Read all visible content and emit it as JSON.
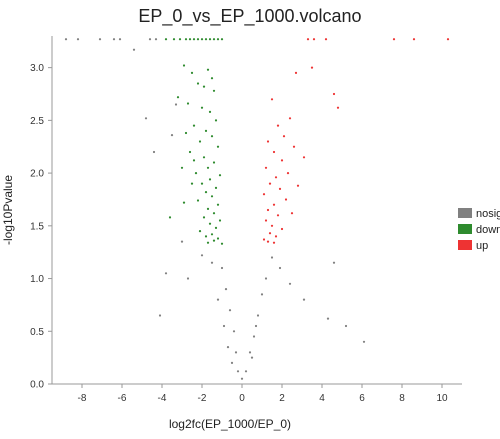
{
  "chart_data": {
    "type": "scatter",
    "title": "EP_0_vs_EP_1000.volcano",
    "xlabel": "log2fc(EP_1000/EP_0)",
    "ylabel": "-log10Pvalue",
    "xlim": [
      -9.5,
      11
    ],
    "ylim": [
      0,
      3.3
    ],
    "x_ticks": [
      -8,
      -6,
      -4,
      -2,
      0,
      2,
      4,
      6,
      8,
      10
    ],
    "y_ticks": [
      0.0,
      0.5,
      1.0,
      1.5,
      2.0,
      2.5,
      3.0
    ],
    "grid": false,
    "legend_position": "right",
    "legend": [
      {
        "key": "nosig",
        "label": "nosig",
        "color": "#808080"
      },
      {
        "key": "down",
        "label": "down",
        "color": "#2e8b2e"
      },
      {
        "key": "up",
        "label": "up",
        "color": "#ee3333"
      }
    ],
    "series": [
      {
        "name": "down",
        "color": "#2e8b2e",
        "points": [
          [
            -3.8,
            3.27
          ],
          [
            -3.4,
            3.27
          ],
          [
            -3.1,
            3.27
          ],
          [
            -2.8,
            3.27
          ],
          [
            -2.6,
            3.27
          ],
          [
            -2.4,
            3.27
          ],
          [
            -2.2,
            3.27
          ],
          [
            -2.0,
            3.27
          ],
          [
            -1.8,
            3.27
          ],
          [
            -1.6,
            3.27
          ],
          [
            -1.4,
            3.27
          ],
          [
            -1.2,
            3.27
          ],
          [
            -1.0,
            3.27
          ],
          [
            -2.9,
            3.02
          ],
          [
            -2.5,
            2.95
          ],
          [
            -1.7,
            2.98
          ],
          [
            -1.5,
            2.9
          ],
          [
            -2.2,
            2.85
          ],
          [
            -1.9,
            2.82
          ],
          [
            -1.4,
            2.78
          ],
          [
            -3.2,
            2.72
          ],
          [
            -2.7,
            2.66
          ],
          [
            -2.0,
            2.62
          ],
          [
            -1.6,
            2.58
          ],
          [
            -1.3,
            2.5
          ],
          [
            -2.4,
            2.45
          ],
          [
            -1.8,
            2.4
          ],
          [
            -1.5,
            2.35
          ],
          [
            -2.1,
            2.3
          ],
          [
            -1.2,
            2.25
          ],
          [
            -2.6,
            2.2
          ],
          [
            -1.9,
            2.15
          ],
          [
            -1.4,
            2.1
          ],
          [
            -1.7,
            2.05
          ],
          [
            -2.3,
            2.0
          ],
          [
            -1.1,
            1.98
          ],
          [
            -1.6,
            1.94
          ],
          [
            -2.0,
            1.9
          ],
          [
            -1.3,
            1.86
          ],
          [
            -1.8,
            1.82
          ],
          [
            -1.5,
            1.78
          ],
          [
            -2.2,
            1.74
          ],
          [
            -1.2,
            1.7
          ],
          [
            -1.7,
            1.66
          ],
          [
            -1.4,
            1.62
          ],
          [
            -1.9,
            1.58
          ],
          [
            -1.1,
            1.55
          ],
          [
            -1.6,
            1.52
          ],
          [
            -1.3,
            1.48
          ],
          [
            -2.1,
            1.45
          ],
          [
            -1.5,
            1.42
          ],
          [
            -1.8,
            1.4
          ],
          [
            -1.2,
            1.38
          ],
          [
            -1.4,
            1.36
          ],
          [
            -1.7,
            1.34
          ],
          [
            -1.0,
            1.33
          ],
          [
            -3.6,
            1.58
          ],
          [
            -2.9,
            1.72
          ],
          [
            -2.5,
            1.9
          ],
          [
            -2.4,
            2.12
          ],
          [
            -2.8,
            2.38
          ],
          [
            -3.0,
            2.05
          ]
        ]
      },
      {
        "name": "up",
        "color": "#ee3333",
        "points": [
          [
            3.3,
            3.27
          ],
          [
            3.6,
            3.27
          ],
          [
            4.2,
            3.27
          ],
          [
            7.6,
            3.27
          ],
          [
            8.6,
            3.27
          ],
          [
            10.3,
            3.27
          ],
          [
            3.5,
            3.0
          ],
          [
            2.7,
            2.95
          ],
          [
            4.6,
            2.75
          ],
          [
            4.8,
            2.62
          ],
          [
            1.5,
            2.7
          ],
          [
            2.4,
            2.52
          ],
          [
            1.8,
            2.45
          ],
          [
            2.1,
            2.35
          ],
          [
            1.3,
            2.3
          ],
          [
            2.6,
            2.25
          ],
          [
            1.6,
            2.2
          ],
          [
            2.0,
            2.12
          ],
          [
            1.2,
            2.05
          ],
          [
            2.3,
            2.0
          ],
          [
            1.7,
            1.96
          ],
          [
            1.4,
            1.9
          ],
          [
            1.9,
            1.85
          ],
          [
            1.1,
            1.8
          ],
          [
            2.2,
            1.75
          ],
          [
            1.6,
            1.7
          ],
          [
            1.3,
            1.65
          ],
          [
            1.8,
            1.6
          ],
          [
            1.2,
            1.55
          ],
          [
            1.5,
            1.5
          ],
          [
            2.0,
            1.47
          ],
          [
            1.4,
            1.43
          ],
          [
            1.7,
            1.4
          ],
          [
            1.1,
            1.37
          ],
          [
            1.3,
            1.35
          ],
          [
            1.6,
            1.34
          ],
          [
            2.5,
            1.62
          ],
          [
            2.8,
            1.88
          ],
          [
            3.1,
            2.15
          ]
        ]
      },
      {
        "name": "nosig",
        "color": "#808080",
        "points": [
          [
            -8.8,
            3.27
          ],
          [
            -8.2,
            3.27
          ],
          [
            -7.1,
            3.27
          ],
          [
            -6.4,
            3.27
          ],
          [
            -6.1,
            3.27
          ],
          [
            -4.6,
            3.27
          ],
          [
            -4.3,
            3.27
          ],
          [
            -5.4,
            3.17
          ],
          [
            -4.8,
            2.52
          ],
          [
            -4.4,
            2.2
          ],
          [
            -3.3,
            2.65
          ],
          [
            -3.5,
            2.36
          ],
          [
            -3.0,
            1.35
          ],
          [
            -3.8,
            1.05
          ],
          [
            -4.1,
            0.65
          ],
          [
            -2.7,
            1.0
          ],
          [
            -2.0,
            1.22
          ],
          [
            -1.5,
            1.15
          ],
          [
            -1.0,
            1.1
          ],
          [
            -0.8,
            0.9
          ],
          [
            -1.2,
            0.8
          ],
          [
            -0.6,
            0.7
          ],
          [
            -0.9,
            0.55
          ],
          [
            -0.4,
            0.5
          ],
          [
            -0.7,
            0.35
          ],
          [
            -0.3,
            0.3
          ],
          [
            -0.5,
            0.2
          ],
          [
            -0.2,
            0.12
          ],
          [
            0.0,
            0.05
          ],
          [
            0.2,
            0.12
          ],
          [
            0.4,
            0.3
          ],
          [
            0.6,
            0.45
          ],
          [
            0.8,
            0.65
          ],
          [
            1.0,
            0.85
          ],
          [
            1.2,
            1.0
          ],
          [
            0.7,
            0.55
          ],
          [
            0.5,
            0.25
          ],
          [
            1.5,
            1.2
          ],
          [
            1.9,
            1.1
          ],
          [
            2.4,
            0.95
          ],
          [
            3.1,
            0.8
          ],
          [
            4.3,
            0.62
          ],
          [
            4.6,
            1.15
          ],
          [
            5.2,
            0.55
          ],
          [
            6.1,
            0.4
          ]
        ]
      }
    ],
    "density_note_visible": false
  }
}
